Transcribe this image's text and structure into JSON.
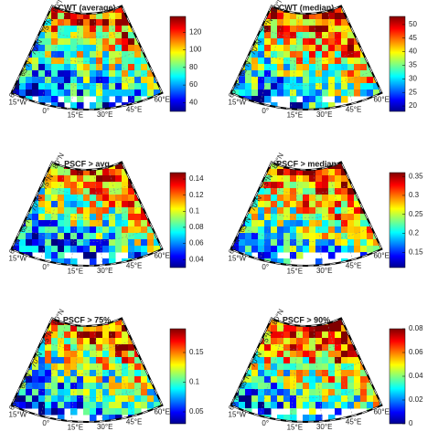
{
  "map_labels": {
    "lat": [
      "80°N",
      "75°N",
      "70°N",
      "65°N",
      "60°N"
    ],
    "lon": [
      "15°W",
      "0°",
      "15°E",
      "30°E",
      "45°E",
      "60°E"
    ]
  },
  "panels": [
    {
      "title": "CWT (average)",
      "colorbar": {
        "clim": [
          30,
          138
        ],
        "ticks": [
          40,
          60,
          80,
          100,
          120
        ]
      }
    },
    {
      "title": "CWT (median)",
      "colorbar": {
        "clim": [
          18,
          53
        ],
        "ticks": [
          20,
          25,
          30,
          35,
          40,
          45,
          50
        ]
      }
    },
    {
      "title": "PSCF > avg",
      "colorbar": {
        "clim": [
          0.03,
          0.148
        ],
        "ticks": [
          0.04,
          0.06,
          0.08,
          0.1,
          0.12,
          0.14
        ]
      }
    },
    {
      "title": "PSCF > median",
      "colorbar": {
        "clim": [
          0.11,
          0.36
        ],
        "ticks": [
          0.15,
          0.2,
          0.25,
          0.3,
          0.35
        ]
      }
    },
    {
      "title": "PSCF > 75%",
      "colorbar": {
        "clim": [
          0.03,
          0.19
        ],
        "ticks": [
          0.05,
          0.1,
          0.15
        ]
      }
    },
    {
      "title": "PSCF > 90%",
      "colorbar": {
        "clim": [
          0,
          0.08
        ],
        "ticks": [
          0,
          0.02,
          0.04,
          0.06,
          0.08
        ]
      }
    }
  ]
}
